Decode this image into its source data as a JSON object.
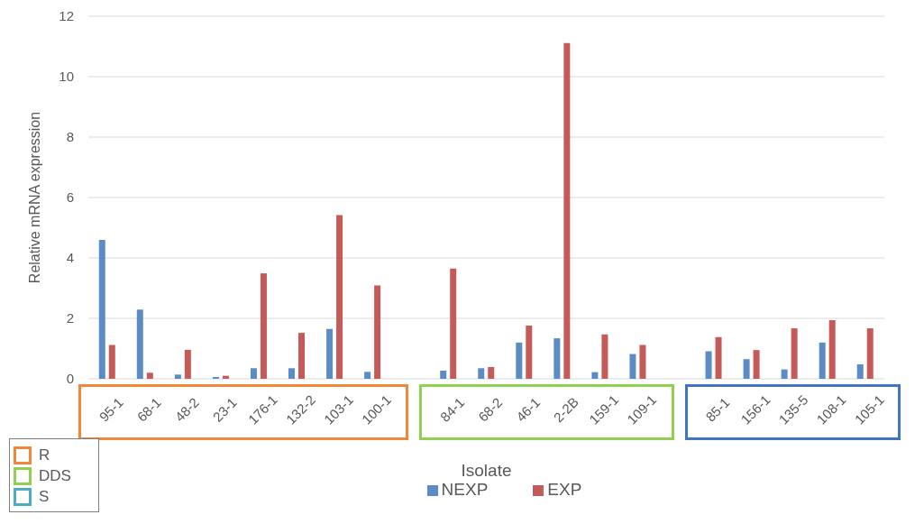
{
  "chart_data": {
    "type": "bar",
    "xlabel": "Isolate",
    "ylabel": "Relative mRNA expression",
    "categories": [
      "95-1",
      "68-1",
      "48-2",
      "23-1",
      "176-1",
      "132-2",
      "103-1",
      "100-1",
      null,
      "84-1",
      "68-2",
      "46-1",
      "2-2B",
      "159-1",
      "109-1",
      null,
      "85-1",
      "156-1",
      "135-5",
      "108-1",
      "105-1"
    ],
    "series": [
      {
        "name": "NEXP",
        "color": "#5b8cc6",
        "values": [
          4.6,
          2.29,
          0.14,
          0.06,
          0.35,
          0.35,
          1.65,
          0.23,
          null,
          0.27,
          0.35,
          1.2,
          1.34,
          0.22,
          0.82,
          null,
          0.91,
          0.65,
          0.31,
          1.2,
          0.48
        ]
      },
      {
        "name": "EXP",
        "color": "#c55a58",
        "values": [
          1.12,
          0.2,
          0.96,
          0.1,
          3.49,
          1.52,
          5.42,
          3.09,
          null,
          3.65,
          0.39,
          1.76,
          11.11,
          1.47,
          1.12,
          null,
          1.38,
          0.95,
          1.67,
          1.94,
          1.67
        ]
      }
    ],
    "ylim": [
      0,
      12
    ],
    "yticks": [
      0,
      2,
      4,
      6,
      8,
      10,
      12
    ],
    "grid": "y",
    "legend": "bottom",
    "annotations": [
      "R",
      "DDS",
      "S"
    ]
  }
}
